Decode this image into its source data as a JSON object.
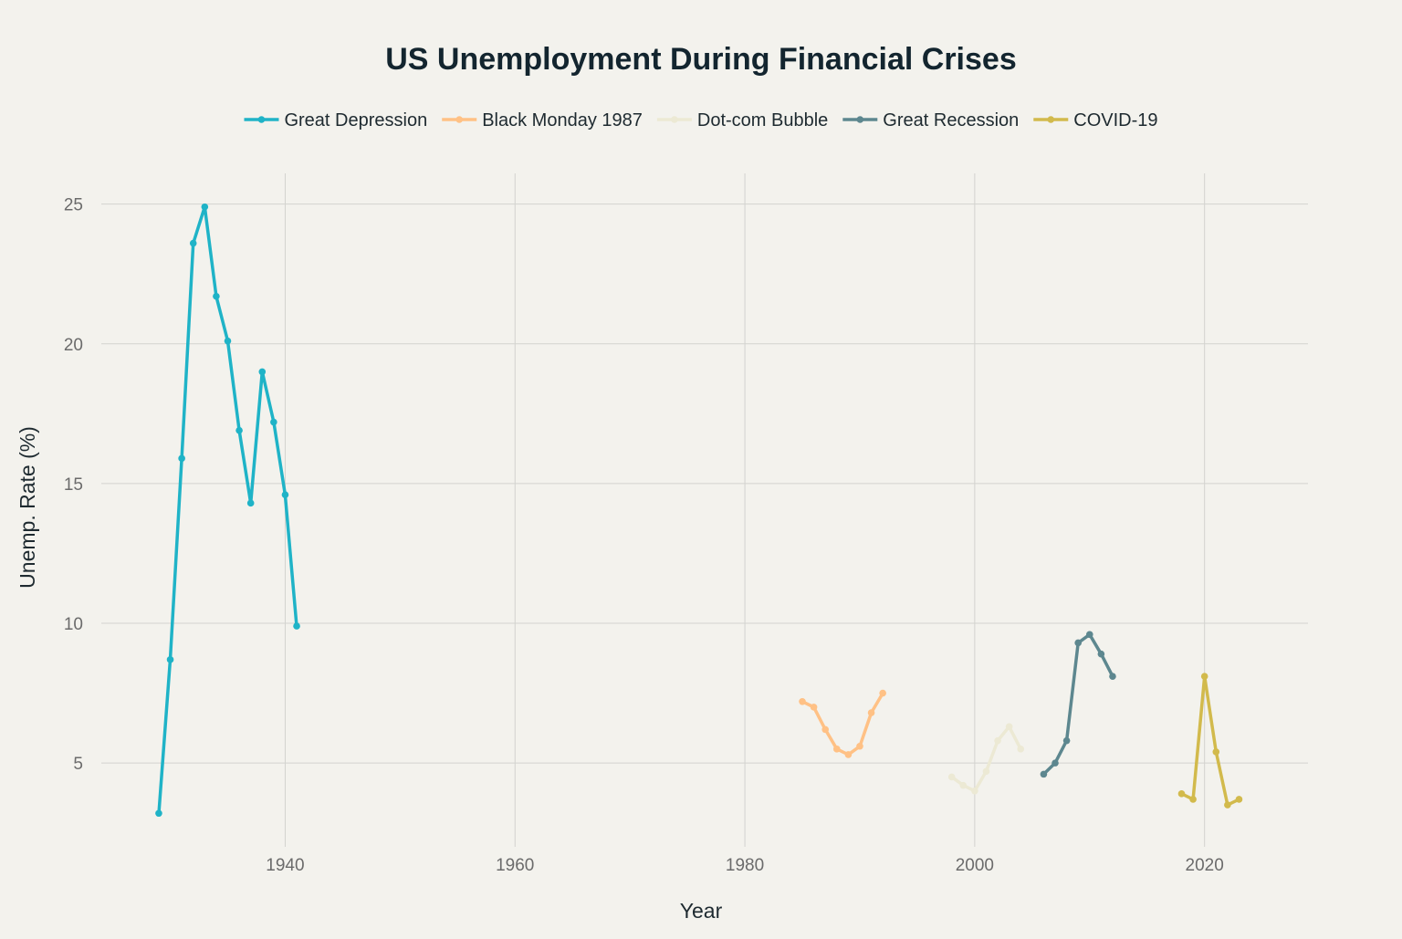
{
  "chart_data": {
    "type": "line",
    "title": "US Unemployment During Financial Crises",
    "xlabel": "Year",
    "ylabel": "Unemp. Rate (%)",
    "xlim": [
      1924,
      2029
    ],
    "ylim": [
      2,
      26.1
    ],
    "xticks": [
      1940,
      1960,
      1980,
      2000,
      2020
    ],
    "yticks": [
      5,
      10,
      15,
      20,
      25
    ],
    "grid": true,
    "legend_position": "top-center",
    "series": [
      {
        "name": "Great Depression",
        "color": "#1fb3c7",
        "x": [
          1929,
          1930,
          1931,
          1932,
          1933,
          1934,
          1935,
          1936,
          1937,
          1938,
          1939,
          1940,
          1941
        ],
        "y": [
          3.2,
          8.7,
          15.9,
          23.6,
          24.9,
          21.7,
          20.1,
          16.9,
          14.3,
          19.0,
          17.2,
          14.6,
          9.9
        ]
      },
      {
        "name": "Black Monday 1987",
        "color": "#ffc185",
        "x": [
          1985,
          1986,
          1987,
          1988,
          1989,
          1990,
          1991,
          1992
        ],
        "y": [
          7.2,
          7.0,
          6.2,
          5.5,
          5.3,
          5.6,
          6.8,
          7.5
        ]
      },
      {
        "name": "Dot-com Bubble",
        "color": "#ece9d4",
        "x": [
          1998,
          1999,
          2000,
          2001,
          2002,
          2003,
          2004
        ],
        "y": [
          4.5,
          4.2,
          4.0,
          4.7,
          5.8,
          6.3,
          5.5
        ]
      },
      {
        "name": "Great Recession",
        "color": "#5d878f",
        "x": [
          2006,
          2007,
          2008,
          2009,
          2010,
          2011,
          2012
        ],
        "y": [
          4.6,
          5.0,
          5.8,
          9.3,
          9.6,
          8.9,
          8.1
        ]
      },
      {
        "name": "COVID-19",
        "color": "#d2ba4c",
        "x": [
          2018,
          2019,
          2020,
          2021,
          2022,
          2023
        ],
        "y": [
          3.9,
          3.7,
          8.1,
          5.4,
          3.5,
          3.7
        ]
      }
    ]
  }
}
